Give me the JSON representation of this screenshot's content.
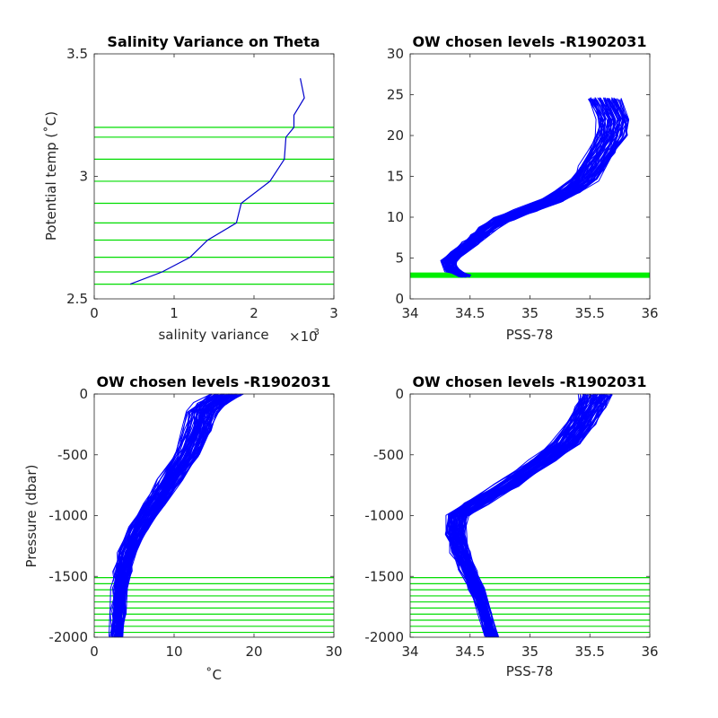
{
  "chart_data": [
    {
      "type": "line",
      "title": "Salinity Variance on Theta",
      "xlabel": "salinity variance",
      "x_multiplier": "×10",
      "x_exponent": "-3",
      "ylabel": "Potential temp (˚C)",
      "xlim": [
        0,
        3
      ],
      "ylim": [
        2.5,
        3.5
      ],
      "xticks": [
        0,
        1,
        2,
        3
      ],
      "yticks": [
        2.5,
        3,
        3.5
      ],
      "xtick_labels": [
        "0",
        "1",
        "2",
        "3"
      ],
      "ytick_labels": [
        "2.5",
        "3",
        "3.5"
      ],
      "series": [
        {
          "color": "#0000cc",
          "x": [
            0.45,
            0.85,
            1.2,
            1.42,
            1.78,
            1.84,
            2.2,
            2.38,
            2.4,
            2.5,
            2.5,
            2.63,
            2.58
          ],
          "y": [
            2.56,
            2.61,
            2.67,
            2.74,
            2.81,
            2.89,
            2.98,
            3.07,
            3.16,
            3.2,
            3.25,
            3.32,
            3.4
          ]
        }
      ],
      "hlines": {
        "color": "#00dd00",
        "values": [
          2.56,
          2.61,
          2.67,
          2.74,
          2.81,
          2.89,
          2.98,
          3.07,
          3.16,
          3.2
        ]
      }
    },
    {
      "type": "line",
      "title": "OW chosen levels -R1902031",
      "xlabel": "PSS-78",
      "ylabel": "",
      "xlim": [
        34,
        36
      ],
      "ylim": [
        0,
        30
      ],
      "xticks": [
        34,
        34.5,
        35,
        35.5,
        36
      ],
      "yticks": [
        0,
        5,
        10,
        15,
        20,
        25,
        30
      ],
      "xtick_labels": [
        "34",
        "34.5",
        "35",
        "35.5",
        "36"
      ],
      "ytick_labels": [
        "0",
        "5",
        "10",
        "15",
        "20",
        "25",
        "30"
      ],
      "profile_color": "#0000ff",
      "profile_x": [
        34.45,
        34.35,
        34.32,
        34.4,
        34.5,
        34.58,
        34.66,
        34.78,
        34.96,
        35.18,
        35.32,
        35.45,
        35.52,
        35.6,
        35.68,
        35.7,
        35.62
      ],
      "profile_y": [
        2.8,
        3.5,
        4.6,
        5.6,
        6.8,
        7.8,
        8.8,
        9.8,
        10.8,
        12.0,
        13.2,
        14.6,
        16.2,
        18.0,
        20.0,
        22.0,
        24.5
      ],
      "profile_count": 70,
      "hband": {
        "color": "#00ee00",
        "y": 2.9
      }
    },
    {
      "type": "line",
      "title": "OW chosen levels -R1902031",
      "xlabel": "˚C",
      "ylabel": "Pressure (dbar)",
      "xlim": [
        0,
        30
      ],
      "ylim": [
        -2000,
        0
      ],
      "xticks": [
        0,
        10,
        20,
        30
      ],
      "yticks": [
        -2000,
        -1500,
        -1000,
        -500,
        0
      ],
      "xtick_labels": [
        "0",
        "10",
        "20",
        "30"
      ],
      "ytick_labels": [
        "-2000",
        "-1500",
        "-1000",
        "-500",
        "0"
      ],
      "profile_color": "#0000ff",
      "profile_x": [
        2.8,
        3.0,
        3.2,
        3.5,
        4.0,
        5.5,
        7.5,
        9.5,
        11.5,
        12.8,
        13.5,
        14.5,
        16.5
      ],
      "profile_y": [
        -2000,
        -1800,
        -1600,
        -1450,
        -1300,
        -1100,
        -900,
        -700,
        -500,
        -300,
        -150,
        -80,
        0
      ],
      "profile_count": 80,
      "hlines": {
        "color": "#00dd00",
        "values": [
          -1510,
          -1560,
          -1610,
          -1660,
          -1710,
          -1760,
          -1810,
          -1860,
          -1910,
          -1960
        ]
      }
    },
    {
      "type": "line",
      "title": "OW chosen levels -R1902031",
      "xlabel": "PSS-78",
      "ylabel": "",
      "xlim": [
        34,
        36
      ],
      "ylim": [
        -2000,
        0
      ],
      "xticks": [
        34,
        34.5,
        35,
        35.5,
        36
      ],
      "yticks": [
        -2000,
        -1500,
        -1000,
        -500,
        0
      ],
      "xtick_labels": [
        "34",
        "34.5",
        "35",
        "35.5",
        "36"
      ],
      "ytick_labels": [
        "-2000",
        "-1500",
        "-1000",
        "-500",
        "0"
      ],
      "profile_color": "#0000ff",
      "profile_x": [
        34.68,
        34.62,
        34.55,
        34.48,
        34.42,
        34.38,
        34.4,
        34.55,
        34.8,
        35.1,
        35.3,
        35.42,
        35.5,
        35.55
      ],
      "profile_y": [
        -2000,
        -1800,
        -1600,
        -1450,
        -1300,
        -1150,
        -1000,
        -900,
        -750,
        -550,
        -400,
        -250,
        -100,
        0
      ],
      "profile_count": 80,
      "hlines": {
        "color": "#00dd00",
        "values": [
          -1510,
          -1560,
          -1610,
          -1660,
          -1710,
          -1760,
          -1810,
          -1860,
          -1910,
          -1960
        ]
      }
    }
  ]
}
